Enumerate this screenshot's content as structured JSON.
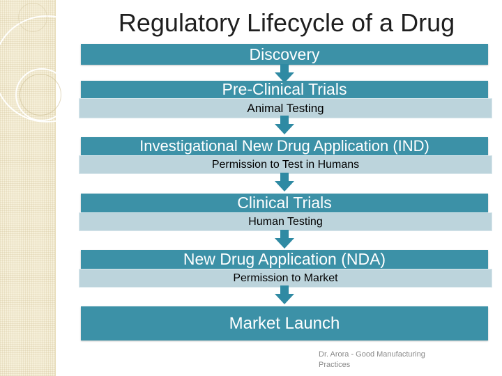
{
  "title": "Regulatory Lifecycle of a Drug",
  "steps": [
    {
      "label": "Discovery",
      "sublabel": ""
    },
    {
      "label": "Pre-Clinical Trials",
      "sublabel": "Animal Testing"
    },
    {
      "label": "Investigational New Drug Application (IND)",
      "sublabel": "Permission to Test in Humans"
    },
    {
      "label": "Clinical Trials",
      "sublabel": "Human Testing"
    },
    {
      "label": "New Drug Application (NDA)",
      "sublabel": "Permission to Market"
    },
    {
      "label": "Market Launch",
      "sublabel": ""
    }
  ],
  "footer": {
    "line1": "Dr. Arora - Good Manufacturing",
    "line2": "Practices"
  },
  "colors": {
    "step_bar": "#3c91a7",
    "sub_bar": "#bcd4dc",
    "arrow": "#2f8aa3"
  }
}
